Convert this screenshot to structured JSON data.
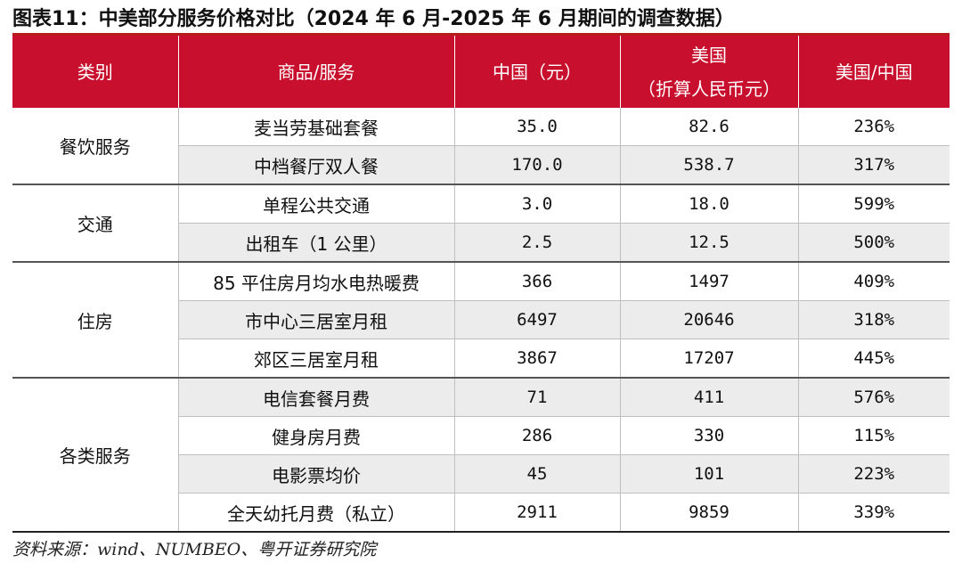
{
  "title": "图表11：中美部分服务价格对比（2024 年 6 月-2025 年 6 月期间的调查数据）",
  "headers": {
    "category": "类别",
    "item": "商品/服务",
    "china": "中国（元）",
    "us_line1": "美国",
    "us_line2": "（折算人民币元）",
    "ratio": "美国/中国"
  },
  "groups": [
    {
      "name": "餐饮服务",
      "rows": [
        {
          "item": "麦当劳基础套餐",
          "china": "35.0",
          "us": "82.6",
          "ratio": "236%"
        },
        {
          "item": "中档餐厅双人餐",
          "china": "170.0",
          "us": "538.7",
          "ratio": "317%"
        }
      ]
    },
    {
      "name": "交通",
      "rows": [
        {
          "item": "单程公共交通",
          "china": "3.0",
          "us": "18.0",
          "ratio": "599%"
        },
        {
          "item": "出租车（1 公里）",
          "china": "2.5",
          "us": "12.5",
          "ratio": "500%"
        }
      ]
    },
    {
      "name": "住房",
      "rows": [
        {
          "item": "85 平住房月均水电热暖费",
          "china": "366",
          "us": "1497",
          "ratio": "409%"
        },
        {
          "item": "市中心三居室月租",
          "china": "6497",
          "us": "20646",
          "ratio": "318%"
        },
        {
          "item": "郊区三居室月租",
          "china": "3867",
          "us": "17207",
          "ratio": "445%"
        }
      ]
    },
    {
      "name": "各类服务",
      "rows": [
        {
          "item": "电信套餐月费",
          "china": "71",
          "us": "411",
          "ratio": "576%"
        },
        {
          "item": "健身房月费",
          "china": "286",
          "us": "330",
          "ratio": "115%"
        },
        {
          "item": "电影票均价",
          "china": "45",
          "us": "101",
          "ratio": "223%"
        },
        {
          "item": "全天幼托月费（私立）",
          "china": "2911",
          "us": "9859",
          "ratio": "339%"
        }
      ]
    }
  ],
  "source": "资料来源：wind、NUMBEO、粤开证券研究院",
  "colors": {
    "header_bg": "#c8102e",
    "shade_bg": "#ececec"
  }
}
